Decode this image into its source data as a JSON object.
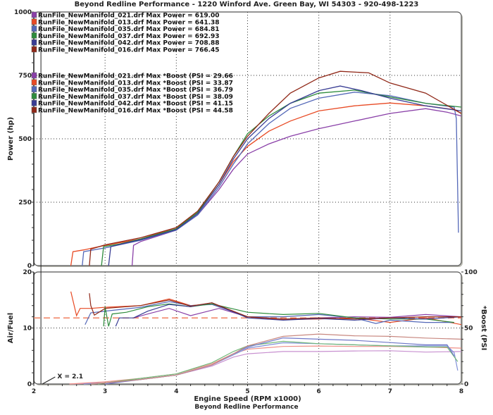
{
  "chart_data": [
    {
      "type": "line",
      "title": "Beyond Redline Performance - 1220 Winford Ave. Green Bay, WI 54303 - 920-498-1223",
      "xlabel": "",
      "ylabel": "Power (hp)",
      "xlim": [
        2,
        8
      ],
      "ylim": [
        0,
        1000
      ],
      "yticks": [
        "0",
        "250",
        "500",
        "750",
        "1000"
      ],
      "grid": true,
      "legend_placement": "top-left",
      "legend": [
        "RunFile_NewManifold_021.drf Max Power = 619.00",
        "RunFile_NewManifold_013.drf Max Power = 641.38",
        "RunFile_NewManifold_035.drf Max Power = 684.81",
        "RunFile_NewManifold_037.drf Max Power = 692.93",
        "RunFile_NewManifold_042.drf Max Power = 708.88",
        "RunFile_NewManifold_016.drf Max Power = 766.45",
        "RunFile_NewManifold_021.drf Max *Boost (PSI = 29.66",
        "RunFile_NewManifold_013.drf Max *Boost (PSI = 33.87",
        "RunFile_NewManifold_035.drf Max *Boost (PSI = 36.79",
        "RunFile_NewManifold_037.drf Max *Boost (PSI = 38.09",
        "RunFile_NewManifold_042.drf Max *Boost (PSI = 41.15",
        "RunFile_NewManifold_016.drf Max *Boost (PSI = 44.58"
      ],
      "series": [
        {
          "name": "021",
          "color": "#8a40a8",
          "x": [
            3.38,
            3.4,
            3.5,
            4.0,
            4.3,
            4.6,
            4.8,
            5.0,
            5.3,
            5.6,
            6.0,
            6.5,
            7.0,
            7.5,
            7.8,
            8.0
          ],
          "y": [
            0,
            80,
            95,
            140,
            200,
            300,
            380,
            440,
            480,
            510,
            540,
            570,
            600,
            619,
            605,
            590
          ]
        },
        {
          "name": "013",
          "color": "#e84a24",
          "x": [
            2.52,
            2.55,
            2.7,
            3.0,
            3.5,
            4.0,
            4.3,
            4.6,
            4.8,
            5.0,
            5.3,
            5.6,
            6.0,
            6.5,
            7.0,
            7.5,
            7.9,
            8.0
          ],
          "y": [
            0,
            55,
            62,
            80,
            105,
            150,
            210,
            320,
            410,
            470,
            530,
            570,
            610,
            630,
            641,
            630,
            615,
            600
          ]
        },
        {
          "name": "035",
          "color": "#5468b8",
          "x": [
            2.68,
            2.7,
            3.0,
            3.5,
            4.0,
            4.3,
            4.6,
            4.8,
            5.0,
            5.3,
            5.6,
            6.0,
            6.5,
            7.0,
            7.5,
            7.9,
            7.93,
            7.96
          ],
          "y": [
            0,
            55,
            70,
            100,
            140,
            200,
            310,
            400,
            480,
            560,
            620,
            660,
            684,
            670,
            640,
            625,
            580,
            130
          ]
        },
        {
          "name": "037",
          "color": "#2e8c3c",
          "x": [
            2.95,
            2.98,
            3.2,
            3.5,
            4.0,
            4.3,
            4.6,
            4.8,
            5.0,
            5.3,
            5.6,
            6.0,
            6.5,
            7.0,
            7.5,
            8.0
          ],
          "y": [
            0,
            75,
            85,
            105,
            145,
            210,
            330,
            430,
            520,
            590,
            640,
            680,
            692,
            665,
            640,
            625
          ]
        },
        {
          "name": "042",
          "color": "#383c94",
          "x": [
            3.05,
            3.08,
            3.3,
            3.5,
            4.0,
            4.3,
            4.6,
            4.8,
            5.0,
            5.3,
            5.6,
            6.0,
            6.3,
            6.6,
            7.0,
            7.5,
            8.0
          ],
          "y": [
            0,
            75,
            90,
            102,
            142,
            205,
            320,
            420,
            500,
            580,
            640,
            690,
            708,
            690,
            660,
            630,
            610
          ]
        },
        {
          "name": "016",
          "color": "#902818",
          "x": [
            2.78,
            2.8,
            3.0,
            3.5,
            4.0,
            4.3,
            4.6,
            4.8,
            5.0,
            5.3,
            5.6,
            6.0,
            6.3,
            6.7,
            7.0,
            7.5,
            8.0
          ],
          "y": [
            0,
            65,
            82,
            110,
            150,
            215,
            330,
            430,
            510,
            600,
            680,
            740,
            766,
            760,
            720,
            680,
            600
          ]
        }
      ]
    },
    {
      "type": "line",
      "xlabel": "Engine Speed (RPM x1000)",
      "ylabel": "Air/Fuel",
      "y2label": "*Boost (PSI",
      "xlim": [
        2,
        8
      ],
      "ylim": [
        0,
        20
      ],
      "y2lim": [
        0,
        100
      ],
      "xticks": [
        "2",
        "3",
        "4",
        "5",
        "6",
        "7",
        "8"
      ],
      "yticks": [
        "0",
        "10",
        "20"
      ],
      "y2ticks": [
        "0",
        "50",
        "100"
      ],
      "reference_line": {
        "name": "target-afr",
        "y": 11.8,
        "color": "#f08060"
      },
      "cursor": {
        "label": "X = 2.1",
        "x": 2.1
      },
      "afr_series": [
        {
          "name": "021",
          "color": "#8a40a8",
          "x": [
            3.4,
            3.6,
            3.9,
            4.2,
            4.6,
            5.0,
            5.5,
            6.0,
            6.5,
            7.0,
            7.5,
            8.0
          ],
          "y": [
            11.8,
            12.5,
            13.5,
            12.2,
            13.5,
            12.0,
            11.5,
            11.8,
            12.0,
            11.9,
            12.4,
            12.0
          ]
        },
        {
          "name": "013",
          "color": "#e84a24",
          "x": [
            2.52,
            2.6,
            2.65,
            2.8,
            3.0,
            3.5,
            3.9,
            4.2,
            4.5,
            5.0,
            5.5,
            6.0,
            6.5,
            7.0,
            7.5,
            8.0
          ],
          "y": [
            16.5,
            12.2,
            13.5,
            13.5,
            13.7,
            14.0,
            15.2,
            14.0,
            14.3,
            12.0,
            11.5,
            11.6,
            11.8,
            11.0,
            11.8,
            10.6
          ]
        },
        {
          "name": "035",
          "color": "#5468b8",
          "x": [
            2.72,
            2.8,
            3.0,
            3.5,
            3.9,
            4.2,
            4.5,
            5.0,
            5.5,
            6.0,
            6.5,
            6.8,
            7.0,
            7.5,
            7.9
          ],
          "y": [
            10.6,
            12.7,
            13.0,
            13.7,
            14.7,
            14.0,
            14.2,
            12.0,
            12.0,
            12.4,
            11.8,
            10.8,
            11.4,
            11.0,
            11.0
          ]
        },
        {
          "name": "037",
          "color": "#2e8c3c",
          "x": [
            2.98,
            3.0,
            3.05,
            3.1,
            3.3,
            3.6,
            3.9,
            4.2,
            4.5,
            5.0,
            5.5,
            6.0,
            6.5,
            7.0,
            7.5,
            7.9
          ],
          "y": [
            10.3,
            13.8,
            10.3,
            12.5,
            12.8,
            13.8,
            14.3,
            13.8,
            14.3,
            12.8,
            12.4,
            12.6,
            11.8,
            11.6,
            11.6,
            11.0
          ]
        },
        {
          "name": "042",
          "color": "#383c94",
          "x": [
            3.15,
            3.2,
            3.4,
            3.6,
            3.9,
            4.2,
            4.5,
            5.0,
            5.5,
            6.0,
            6.5,
            7.0,
            7.5,
            8.0
          ],
          "y": [
            10.3,
            11.8,
            11.8,
            13.0,
            14.2,
            13.8,
            14.5,
            11.8,
            11.4,
            11.7,
            11.4,
            11.8,
            11.6,
            12.0
          ]
        },
        {
          "name": "016",
          "color": "#902818",
          "x": [
            2.78,
            2.8,
            2.85,
            3.0,
            3.5,
            3.9,
            4.2,
            4.5,
            5.0,
            5.5,
            6.0,
            6.5,
            7.0,
            7.5,
            8.0
          ],
          "y": [
            16.2,
            14.0,
            12.3,
            13.5,
            14.0,
            15.0,
            13.9,
            14.5,
            12.0,
            11.6,
            11.8,
            11.6,
            11.8,
            12.0,
            12.0
          ]
        }
      ],
      "boost_series": [
        {
          "name": "021",
          "color": "#c890d0",
          "x": [
            2.5,
            3.0,
            3.5,
            4.0,
            4.5,
            4.8,
            5.0,
            5.5,
            6.0,
            6.5,
            7.0,
            7.5,
            8.0
          ],
          "y": [
            0,
            1,
            4,
            8,
            16,
            24,
            27,
            29,
            29,
            29.5,
            29.66,
            28.5,
            29
          ]
        },
        {
          "name": "013",
          "color": "#f09088",
          "x": [
            2.5,
            3.0,
            3.5,
            4.0,
            4.5,
            4.8,
            5.0,
            5.5,
            6.0,
            6.5,
            7.0,
            7.5,
            8.0
          ],
          "y": [
            0,
            2,
            5,
            9,
            18,
            27,
            31,
            33.5,
            33.87,
            33.5,
            33.5,
            33,
            32
          ]
        },
        {
          "name": "035",
          "color": "#8090d8",
          "x": [
            2.7,
            3.0,
            3.5,
            4.0,
            4.5,
            4.8,
            5.0,
            5.5,
            6.0,
            6.5,
            7.0,
            7.5,
            7.8,
            7.9,
            7.95
          ],
          "y": [
            0,
            1,
            4,
            8,
            17,
            26,
            32,
            36.79,
            36,
            35,
            34,
            34,
            34,
            28,
            12
          ]
        },
        {
          "name": "037",
          "color": "#70b878",
          "x": [
            2.9,
            3.0,
            3.5,
            4.0,
            4.5,
            4.8,
            5.0,
            5.5,
            6.0,
            6.5,
            7.0,
            7.5,
            7.8,
            7.95
          ],
          "y": [
            0,
            1,
            5,
            9,
            19,
            29,
            34,
            38.09,
            36,
            35,
            34,
            33,
            33,
            20
          ]
        },
        {
          "name": "042",
          "color": "#7078c8",
          "x": [
            3.0,
            3.5,
            4.0,
            4.5,
            4.8,
            5.0,
            5.5,
            6.0,
            6.5,
            7.0,
            7.5,
            7.8,
            7.9
          ],
          "y": [
            0,
            4,
            8,
            17,
            27,
            33,
            41.15,
            40,
            39,
            37,
            35,
            35,
            25
          ]
        },
        {
          "name": "016",
          "color": "#c88880",
          "x": [
            2.8,
            3.0,
            3.5,
            4.0,
            4.5,
            4.8,
            5.0,
            5.5,
            6.0,
            6.5,
            7.0,
            7.5,
            8.0
          ],
          "y": [
            0,
            1,
            4,
            8,
            17,
            27,
            34,
            42.5,
            44.58,
            43,
            42.5,
            41,
            40
          ]
        }
      ]
    }
  ],
  "footer": "Beyond Redline Performance"
}
